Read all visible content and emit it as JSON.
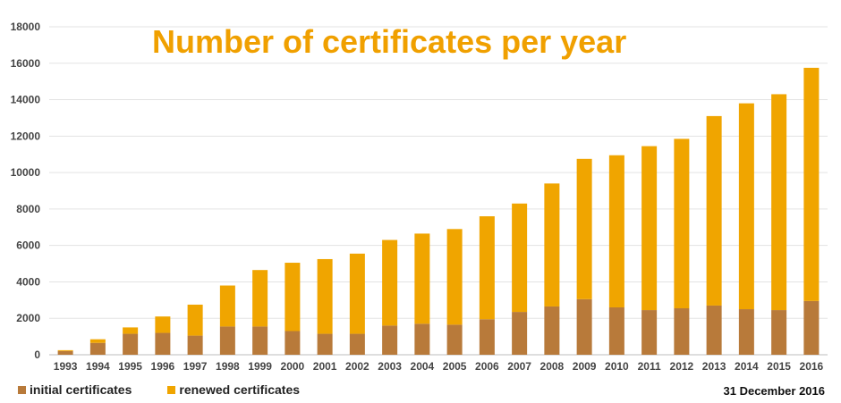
{
  "chart_data": {
    "type": "bar",
    "stacked": true,
    "title": "Number of certificates per year",
    "categories": [
      "1993",
      "1994",
      "1995",
      "1996",
      "1997",
      "1998",
      "1999",
      "2000",
      "2001",
      "2002",
      "2003",
      "2004",
      "2005",
      "2006",
      "2007",
      "2008",
      "2009",
      "2010",
      "2011",
      "2012",
      "2013",
      "2014",
      "2015",
      "2016"
    ],
    "series": [
      {
        "name": "initial certificates",
        "color": "#B87A3A",
        "values": [
          200,
          650,
          1150,
          1200,
          1050,
          1550,
          1550,
          1300,
          1150,
          1150,
          1600,
          1700,
          1650,
          1950,
          2350,
          2650,
          3050,
          2600,
          2450,
          2550,
          2700,
          2500,
          2450,
          2950
        ]
      },
      {
        "name": "renewed certificates",
        "color": "#F0A500",
        "values": [
          50,
          200,
          350,
          900,
          1700,
          2250,
          3100,
          3750,
          4100,
          4400,
          4700,
          4950,
          5250,
          5650,
          5950,
          6750,
          7700,
          8350,
          9000,
          9300,
          10400,
          11300,
          11850,
          12800
        ]
      }
    ],
    "ylim": [
      0,
      18000
    ],
    "yticks": [
      0,
      2000,
      4000,
      6000,
      8000,
      10000,
      12000,
      14000,
      16000,
      18000
    ],
    "grid": true,
    "legend_position": "bottom-left",
    "annotation": "31 December 2016"
  }
}
